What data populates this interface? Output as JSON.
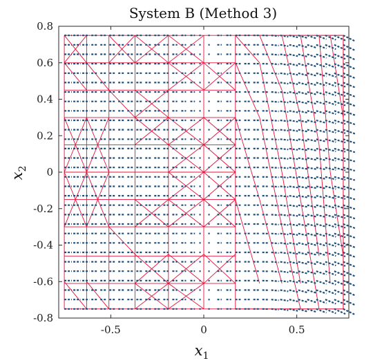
{
  "chart_data": {
    "type": "quiver",
    "title": "System B (Method 3)",
    "xlabel": {
      "symbol": "x",
      "subscript": "1"
    },
    "ylabel": {
      "symbol": "x",
      "subscript": "2"
    },
    "xlim": [
      -0.78,
      0.78
    ],
    "ylim": [
      -0.8,
      0.8
    ],
    "xticks": [
      -0.5,
      0,
      0.5
    ],
    "xtick_labels": [
      "-0.5",
      "0",
      "0.5"
    ],
    "yticks": [
      -0.8,
      -0.6,
      -0.4,
      -0.2,
      0,
      0.2,
      0.4,
      0.6,
      0.8
    ],
    "ytick_labels": [
      "-0.8",
      "-0.6",
      "-0.4",
      "-0.2",
      "0",
      "0.2",
      "0.4",
      "0.6",
      "0.8"
    ],
    "grid": false,
    "vector_field": {
      "x_range": [
        -0.75,
        0.75
      ],
      "y_range": [
        -0.75,
        0.75
      ],
      "nx": 32,
      "ny": 30,
      "color": "#1f4e79",
      "description": "dashed arrows mostly pointing in +x direction; magnitude grows with x1; near-zero band at x1 in [-0.05, 0.05]; downward tilt on right edge"
    },
    "triangulation": {
      "color": "#e8103c",
      "domain_x": [
        -0.75,
        0.75
      ],
      "domain_y": [
        -0.75,
        0.75
      ],
      "vertical_lines": [
        -0.75,
        -0.63,
        -0.51,
        -0.37,
        -0.19,
        0.0,
        0.17,
        0.75
      ],
      "horizontal_lines": [
        -0.75,
        -0.61,
        -0.46,
        -0.3,
        -0.15,
        0.0,
        0.15,
        0.3,
        0.45,
        0.6,
        0.75
      ],
      "extra_segments": [
        [
          [
            -0.75,
            0.75
          ],
          [
            -0.63,
            0.6
          ]
        ],
        [
          [
            -0.63,
            0.75
          ],
          [
            -0.75,
            0.6
          ]
        ],
        [
          [
            -0.75,
            0.6
          ],
          [
            -0.63,
            0.45
          ]
        ],
        [
          [
            -0.63,
            0.6
          ],
          [
            -0.51,
            0.45
          ]
        ],
        [
          [
            -0.75,
            0.3
          ],
          [
            -0.63,
            0.0
          ]
        ],
        [
          [
            -0.63,
            0.3
          ],
          [
            -0.75,
            0.0
          ]
        ],
        [
          [
            -0.63,
            0.3
          ],
          [
            -0.51,
            0.0
          ]
        ],
        [
          [
            -0.51,
            0.3
          ],
          [
            -0.63,
            0.0
          ]
        ],
        [
          [
            -0.75,
            0.0
          ],
          [
            -0.63,
            -0.3
          ]
        ],
        [
          [
            -0.63,
            0.0
          ],
          [
            -0.75,
            -0.3
          ]
        ],
        [
          [
            -0.63,
            0.0
          ],
          [
            -0.51,
            -0.3
          ]
        ],
        [
          [
            -0.51,
            0.0
          ],
          [
            -0.63,
            -0.3
          ]
        ],
        [
          [
            -0.75,
            -0.6
          ],
          [
            -0.63,
            -0.75
          ]
        ],
        [
          [
            -0.63,
            -0.6
          ],
          [
            -0.51,
            -0.75
          ]
        ],
        [
          [
            -0.51,
            0.75
          ],
          [
            -0.37,
            0.6
          ]
        ],
        [
          [
            -0.37,
            0.75
          ],
          [
            -0.51,
            0.6
          ]
        ],
        [
          [
            -0.51,
            0.45
          ],
          [
            -0.37,
            0.3
          ]
        ],
        [
          [
            -0.51,
            -0.3
          ],
          [
            -0.37,
            -0.45
          ]
        ],
        [
          [
            -0.37,
            0.75
          ],
          [
            -0.19,
            0.6
          ]
        ],
        [
          [
            -0.19,
            0.75
          ],
          [
            -0.37,
            0.6
          ]
        ],
        [
          [
            -0.37,
            0.45
          ],
          [
            -0.19,
            0.3
          ]
        ],
        [
          [
            -0.19,
            0.45
          ],
          [
            -0.37,
            0.3
          ]
        ],
        [
          [
            -0.37,
            0.3
          ],
          [
            -0.19,
            0.15
          ]
        ],
        [
          [
            -0.19,
            0.3
          ],
          [
            -0.37,
            0.15
          ]
        ],
        [
          [
            -0.37,
            -0.15
          ],
          [
            -0.19,
            -0.3
          ]
        ],
        [
          [
            -0.19,
            -0.15
          ],
          [
            -0.37,
            -0.3
          ]
        ],
        [
          [
            -0.37,
            -0.45
          ],
          [
            -0.19,
            -0.61
          ]
        ],
        [
          [
            -0.19,
            -0.45
          ],
          [
            -0.37,
            -0.61
          ]
        ],
        [
          [
            -0.37,
            -0.61
          ],
          [
            -0.19,
            -0.75
          ]
        ],
        [
          [
            -0.19,
            -0.61
          ],
          [
            -0.37,
            -0.75
          ]
        ],
        [
          [
            -0.19,
            0.75
          ],
          [
            0.0,
            0.6
          ]
        ],
        [
          [
            0.0,
            0.75
          ],
          [
            -0.19,
            0.6
          ]
        ],
        [
          [
            -0.19,
            0.6
          ],
          [
            0.0,
            0.45
          ]
        ],
        [
          [
            0.0,
            0.6
          ],
          [
            -0.19,
            0.45
          ]
        ],
        [
          [
            -0.19,
            0.3
          ],
          [
            0.0,
            0.15
          ]
        ],
        [
          [
            0.0,
            0.3
          ],
          [
            -0.19,
            0.15
          ]
        ],
        [
          [
            -0.19,
            0.15
          ],
          [
            0.0,
            0.0
          ]
        ],
        [
          [
            0.0,
            0.15
          ],
          [
            -0.19,
            0.0
          ]
        ],
        [
          [
            -0.19,
            0.0
          ],
          [
            0.0,
            -0.15
          ]
        ],
        [
          [
            0.0,
            0.0
          ],
          [
            -0.19,
            -0.15
          ]
        ],
        [
          [
            -0.19,
            -0.15
          ],
          [
            0.0,
            -0.3
          ]
        ],
        [
          [
            0.0,
            -0.15
          ],
          [
            -0.19,
            -0.3
          ]
        ],
        [
          [
            -0.19,
            -0.45
          ],
          [
            0.0,
            -0.61
          ]
        ],
        [
          [
            0.0,
            -0.45
          ],
          [
            -0.19,
            -0.61
          ]
        ],
        [
          [
            -0.19,
            -0.61
          ],
          [
            0.0,
            -0.75
          ]
        ],
        [
          [
            0.0,
            -0.61
          ],
          [
            -0.19,
            -0.75
          ]
        ],
        [
          [
            0.0,
            0.3
          ],
          [
            0.17,
            0.15
          ]
        ],
        [
          [
            0.17,
            0.3
          ],
          [
            0.0,
            0.15
          ]
        ],
        [
          [
            0.0,
            0.15
          ],
          [
            0.17,
            0.0
          ]
        ],
        [
          [
            0.17,
            0.15
          ],
          [
            0.0,
            0.0
          ]
        ],
        [
          [
            0.0,
            0.0
          ],
          [
            0.17,
            -0.15
          ]
        ],
        [
          [
            0.17,
            0.0
          ],
          [
            0.0,
            -0.15
          ]
        ],
        [
          [
            0.0,
            -0.15
          ],
          [
            0.17,
            -0.3
          ]
        ],
        [
          [
            0.17,
            -0.15
          ],
          [
            0.0,
            -0.3
          ]
        ],
        [
          [
            0.0,
            0.6
          ],
          [
            0.17,
            0.45
          ]
        ],
        [
          [
            0.17,
            0.6
          ],
          [
            0.0,
            0.45
          ]
        ],
        [
          [
            0.0,
            -0.45
          ],
          [
            0.17,
            -0.61
          ]
        ],
        [
          [
            0.17,
            -0.45
          ],
          [
            0.0,
            -0.61
          ]
        ],
        [
          [
            0.17,
            0.75
          ],
          [
            0.3,
            0.6
          ]
        ],
        [
          [
            0.17,
            0.6
          ],
          [
            0.3,
            0.3
          ]
        ],
        [
          [
            0.17,
            0.3
          ],
          [
            0.3,
            -0.15
          ]
        ],
        [
          [
            0.17,
            -0.15
          ],
          [
            0.3,
            -0.61
          ]
        ],
        [
          [
            0.3,
            0.75
          ],
          [
            0.42,
            0.45
          ]
        ],
        [
          [
            0.3,
            0.6
          ],
          [
            0.42,
            0.0
          ]
        ],
        [
          [
            0.3,
            0.3
          ],
          [
            0.42,
            -0.3
          ]
        ],
        [
          [
            0.3,
            -0.15
          ],
          [
            0.42,
            -0.61
          ]
        ],
        [
          [
            0.42,
            0.75
          ],
          [
            0.52,
            0.3
          ]
        ],
        [
          [
            0.42,
            0.45
          ],
          [
            0.52,
            -0.15
          ]
        ],
        [
          [
            0.42,
            0.0
          ],
          [
            0.52,
            -0.61
          ]
        ],
        [
          [
            0.42,
            -0.3
          ],
          [
            0.52,
            -0.75
          ]
        ],
        [
          [
            0.52,
            0.75
          ],
          [
            0.62,
            0.15
          ]
        ],
        [
          [
            0.52,
            0.3
          ],
          [
            0.62,
            -0.46
          ]
        ],
        [
          [
            0.52,
            -0.15
          ],
          [
            0.62,
            -0.75
          ]
        ],
        [
          [
            0.62,
            0.75
          ],
          [
            0.68,
            0.0
          ]
        ],
        [
          [
            0.62,
            0.15
          ],
          [
            0.68,
            -0.61
          ]
        ],
        [
          [
            0.68,
            0.75
          ],
          [
            0.75,
            0.3
          ]
        ],
        [
          [
            0.68,
            0.0
          ],
          [
            0.75,
            -0.46
          ]
        ],
        [
          [
            0.17,
            0.75
          ],
          [
            0.75,
            0.75
          ]
        ],
        [
          [
            0.17,
            -0.75
          ],
          [
            0.75,
            -0.75
          ]
        ]
      ]
    }
  }
}
